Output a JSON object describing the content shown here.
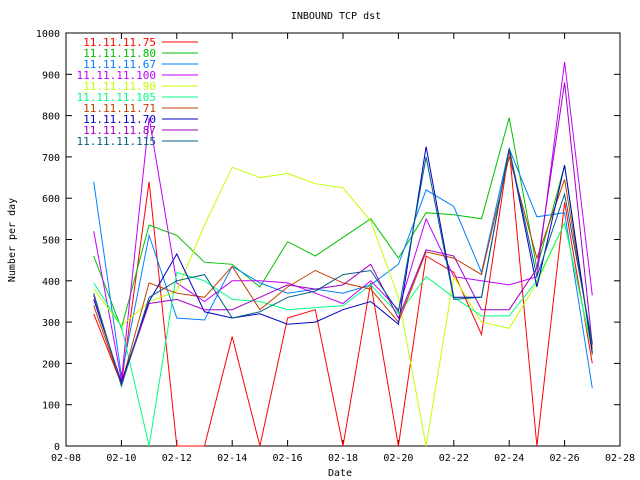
{
  "chart_data": {
    "type": "line",
    "title": "INBOUND TCP dst",
    "xlabel": "Date",
    "ylabel": "Number per day",
    "xticks": [
      "02-08",
      "02-10",
      "02-12",
      "02-14",
      "02-16",
      "02-18",
      "02-20",
      "02-22",
      "02-24",
      "02-26",
      "02-28"
    ],
    "xlim": [
      8,
      28
    ],
    "ylim": [
      0,
      1000
    ],
    "yticks": [
      0,
      100,
      200,
      300,
      400,
      500,
      600,
      700,
      800,
      900,
      1000
    ],
    "grid": false,
    "legend_position": "top-left",
    "x": [
      9,
      10,
      11,
      12,
      13,
      14,
      15,
      16,
      17,
      18,
      19,
      20,
      21,
      22,
      23,
      24,
      25,
      26,
      27
    ],
    "series": [
      {
        "name": "11.11.11.75",
        "color": "#ff0000",
        "values": [
          320,
          150,
          640,
          0,
          0,
          265,
          0,
          310,
          330,
          0,
          395,
          0,
          460,
          420,
          270,
          720,
          0,
          590,
          200
        ]
      },
      {
        "name": "11.11.11.80",
        "color": "#00c000",
        "values": [
          460,
          285,
          535,
          510,
          445,
          440,
          385,
          495,
          460,
          505,
          550,
          455,
          565,
          560,
          550,
          795,
          430,
          680,
          220
        ]
      },
      {
        "name": "11.11.11.67",
        "color": "#0080ff",
        "values": [
          640,
          170,
          510,
          310,
          305,
          435,
          395,
          370,
          380,
          370,
          390,
          440,
          620,
          580,
          420,
          720,
          555,
          565,
          140
        ]
      },
      {
        "name": "11.11.11.100",
        "color": "#c000ff",
        "values": [
          520,
          160,
          795,
          395,
          350,
          400,
          400,
          395,
          370,
          345,
          400,
          330,
          550,
          410,
          400,
          390,
          410,
          930,
          365
        ]
      },
      {
        "name": "11.11.11.90",
        "color": "#c0ff00",
        "values": [
          380,
          290,
          350,
          375,
          535,
          675,
          650,
          660,
          635,
          625,
          545,
          360,
          0,
          410,
          300,
          285,
          395,
          540,
          225
        ]
      },
      {
        "name": "11.11.11.105",
        "color": "#00ff80",
        "values": [
          395,
          290,
          0,
          420,
          400,
          355,
          350,
          330,
          335,
          340,
          390,
          320,
          410,
          360,
          315,
          315,
          400,
          540,
          230
        ]
      },
      {
        "name": "11.11.11.71",
        "color": "#c04000",
        "values": [
          340,
          150,
          395,
          370,
          360,
          435,
          330,
          385,
          425,
          395,
          380,
          300,
          470,
          455,
          415,
          700,
          455,
          645,
          235
        ]
      },
      {
        "name": "11.11.11.70",
        "color": "#0000c0",
        "values": [
          355,
          155,
          350,
          465,
          325,
          310,
          320,
          295,
          300,
          330,
          350,
          295,
          725,
          360,
          360,
          720,
          385,
          680,
          225
        ]
      },
      {
        "name": "11.11.11.87",
        "color": "#a000c0",
        "values": [
          365,
          150,
          345,
          355,
          330,
          330,
          360,
          390,
          380,
          390,
          440,
          310,
          475,
          460,
          330,
          330,
          430,
          880,
          245
        ]
      },
      {
        "name": "11.11.11.115",
        "color": "#006080",
        "values": [
          370,
          145,
          360,
          400,
          415,
          310,
          325,
          360,
          375,
          415,
          425,
          325,
          700,
          355,
          360,
          720,
          410,
          610,
          250
        ]
      }
    ]
  }
}
